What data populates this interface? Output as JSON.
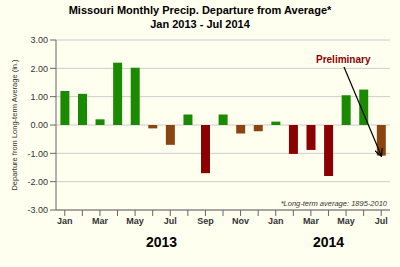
{
  "chart_data": {
    "type": "bar",
    "title": "Missouri Monthly Precip. Departure from Average*",
    "subtitle": "Jan 2013 - Jul 2014",
    "ylabel": "Departure from Long-term Average (in.)",
    "categories": [
      "Jan",
      null,
      "Mar",
      null,
      "May",
      null,
      "Jul",
      null,
      "Sep",
      null,
      "Nov",
      null,
      "Jan",
      null,
      "Mar",
      null,
      "May",
      null,
      "Jul"
    ],
    "values": [
      1.2,
      1.1,
      0.2,
      2.2,
      2.02,
      -0.12,
      -0.7,
      0.37,
      -1.7,
      0.37,
      -0.3,
      -0.22,
      0.12,
      -1.02,
      -0.88,
      -1.8,
      1.05,
      1.25,
      -1.08
    ],
    "colors": [
      "#1a8a00",
      "#1a8a00",
      "#1a8a00",
      "#1a8a00",
      "#1a8a00",
      "#8b4513",
      "#8b4513",
      "#1a8a00",
      "#8b0000",
      "#1a8a00",
      "#8b4513",
      "#8b4513",
      "#1a8a00",
      "#8b0000",
      "#8b0000",
      "#8b0000",
      "#1a8a00",
      "#1a8a00",
      "#8b4513"
    ],
    "ylim": [
      -3.0,
      3.0
    ],
    "yticks": [
      {
        "value": -3.0,
        "label": "-3.00"
      },
      {
        "value": -2.0,
        "label": "-2.00"
      },
      {
        "value": -1.0,
        "label": "-1.00"
      },
      {
        "value": 0.0,
        "label": "0.00"
      },
      {
        "value": 1.0,
        "label": "1.00"
      },
      {
        "value": 2.0,
        "label": "2.00"
      },
      {
        "value": 3.0,
        "label": "3.00"
      }
    ],
    "grid": true,
    "annotations": [
      {
        "text": "Preliminary",
        "color": "#8b0000"
      }
    ],
    "footnote": "*Long-term average: 1895-2010",
    "year_labels": [
      "2013",
      "2014"
    ]
  }
}
